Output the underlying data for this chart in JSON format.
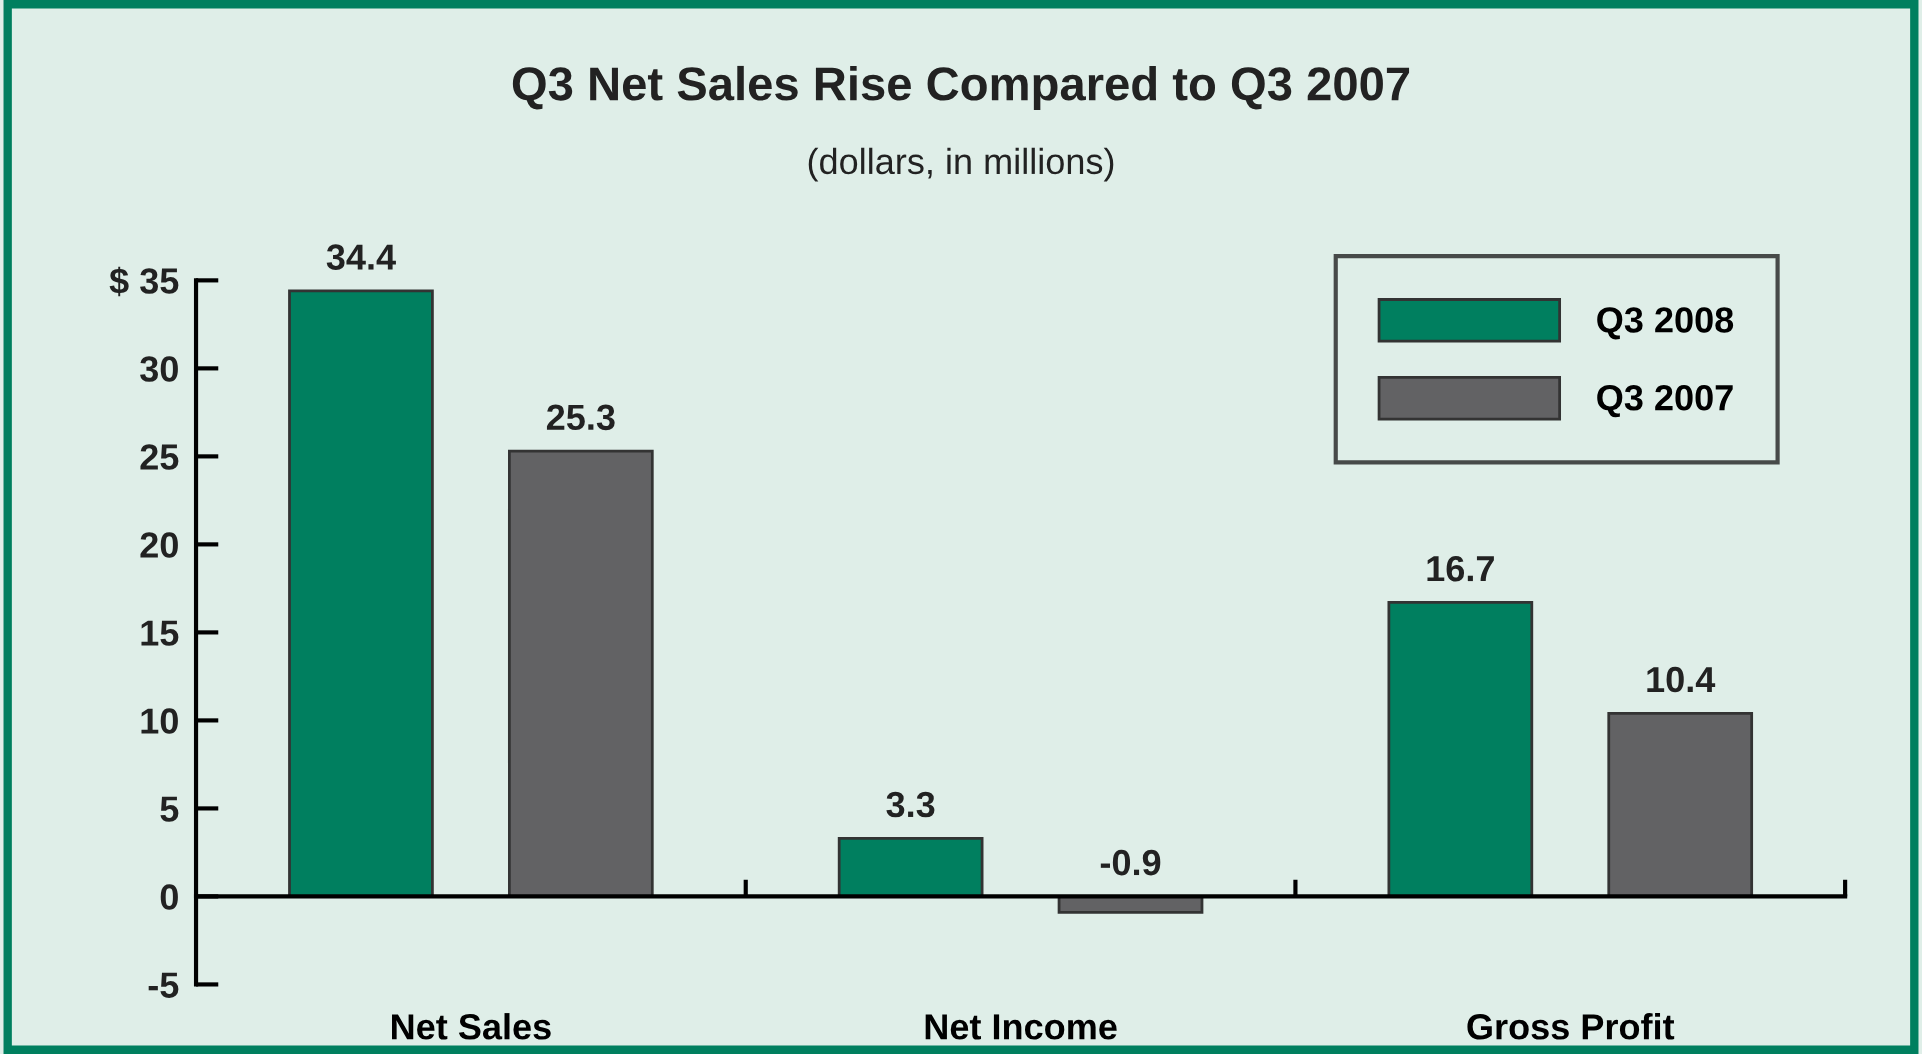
{
  "chart_data": {
    "type": "bar",
    "title": "Q3 Net Sales Rise Compared to Q3 2007",
    "subtitle": "(dollars, in millions)",
    "categories": [
      "Net Sales",
      "Net Income",
      "Gross Profit"
    ],
    "series": [
      {
        "name": "Q3 2008",
        "color": "#007f5f",
        "values": [
          34.4,
          3.3,
          16.7
        ]
      },
      {
        "name": "Q3 2007",
        "color": "#626264",
        "values": [
          25.3,
          -0.9,
          10.4
        ]
      }
    ],
    "ylim": [
      -5,
      35
    ],
    "yticks": [
      -5,
      0,
      5,
      10,
      15,
      20,
      25,
      30,
      {
        "value": 35,
        "label": "$ 35"
      }
    ],
    "data_labels": true,
    "legend": "top right"
  }
}
